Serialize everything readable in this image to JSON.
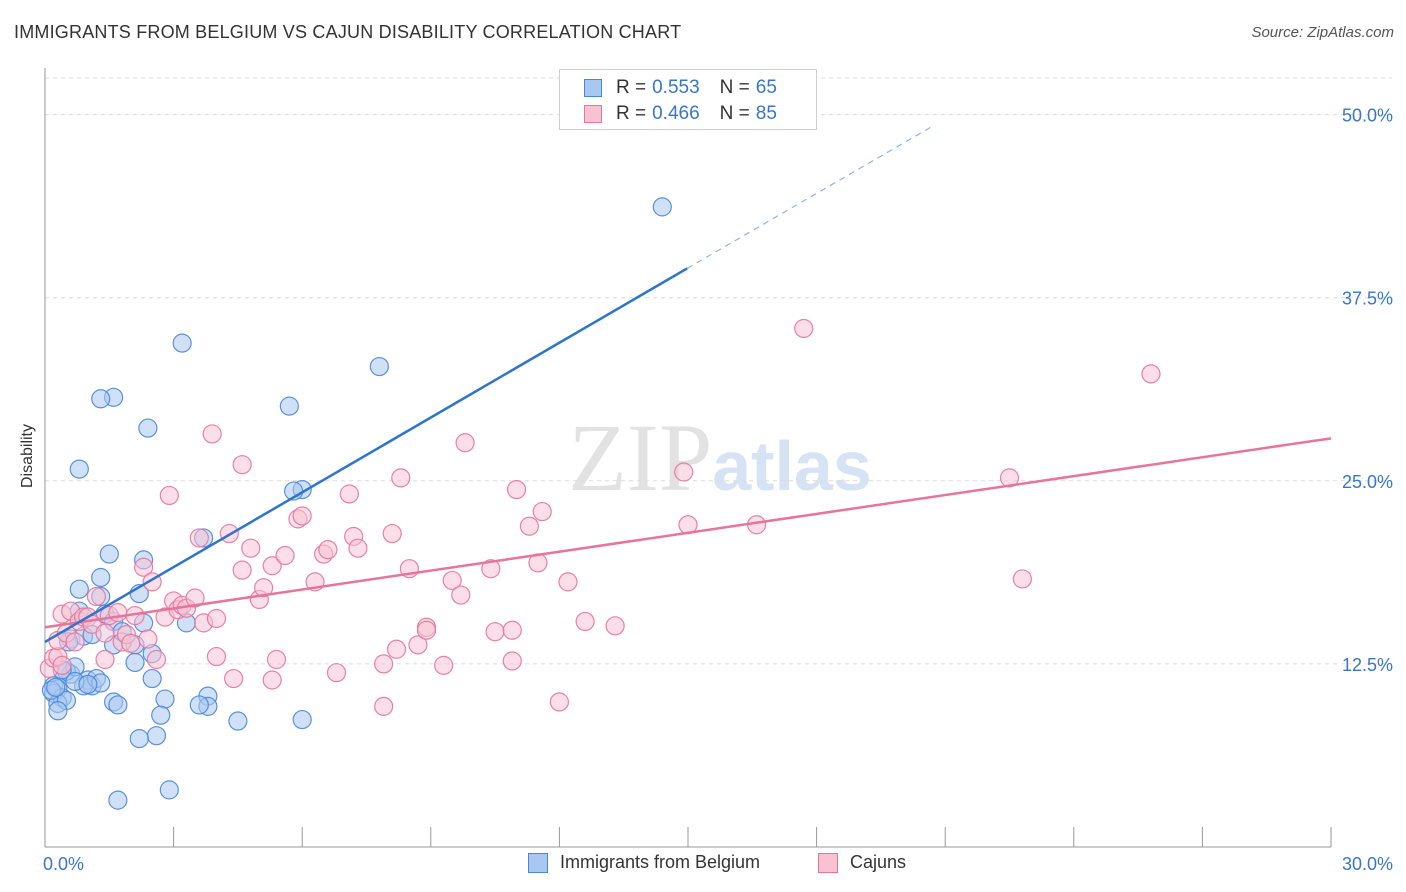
{
  "chart_data": {
    "type": "scatter",
    "title": "IMMIGRANTS FROM BELGIUM VS CAJUN DISABILITY CORRELATION CHART",
    "source": "Source: ZipAtlas.com",
    "xlabel": "",
    "ylabel": "Disability",
    "xlim": [
      0,
      30
    ],
    "ylim": [
      0,
      52.5
    ],
    "x_tick_labels": [
      "0.0%",
      "30.0%"
    ],
    "y_ticks": [
      12.5,
      25.0,
      37.5,
      50.0
    ],
    "y_tick_labels": [
      "12.5%",
      "25.0%",
      "37.5%",
      "50.0%"
    ],
    "watermark": "ZIPatlas",
    "legend_stats": [
      {
        "r_label": "R =",
        "r_value": "0.553",
        "n_label": "N =",
        "n_value": "65"
      },
      {
        "r_label": "R =",
        "r_value": "0.466",
        "n_label": "N =",
        "n_value": "85"
      }
    ],
    "series": [
      {
        "name": "Immigrants from Belgium",
        "color": "#4a86d8",
        "fill": "#a9c8f0",
        "trend": {
          "x0": 0.0,
          "y0": 14.0,
          "x1": 14.98,
          "y1": 39.5,
          "dash_to_x": 20.7,
          "dash_to_y": 49.2
        },
        "points": [
          [
            0.2,
            11.0
          ],
          [
            0.3,
            10.8
          ],
          [
            0.2,
            10.5
          ],
          [
            0.4,
            10.2
          ],
          [
            0.3,
            9.8
          ],
          [
            0.5,
            10.0
          ],
          [
            0.3,
            9.3
          ],
          [
            0.6,
            11.8
          ],
          [
            0.5,
            12.0
          ],
          [
            0.7,
            12.3
          ],
          [
            0.6,
            14.2
          ],
          [
            0.9,
            14.4
          ],
          [
            0.8,
            16.1
          ],
          [
            0.8,
            17.6
          ],
          [
            1.0,
            11.4
          ],
          [
            1.1,
            11.0
          ],
          [
            0.9,
            11.0
          ],
          [
            1.2,
            11.5
          ],
          [
            1.3,
            11.2
          ],
          [
            1.1,
            14.5
          ],
          [
            1.3,
            17.1
          ],
          [
            1.3,
            18.4
          ],
          [
            1.4,
            15.9
          ],
          [
            1.6,
            15.4
          ],
          [
            1.6,
            13.8
          ],
          [
            1.6,
            9.9
          ],
          [
            1.7,
            9.7
          ],
          [
            1.6,
            30.7
          ],
          [
            1.3,
            30.6
          ],
          [
            0.8,
            25.8
          ],
          [
            1.5,
            20.0
          ],
          [
            2.3,
            19.6
          ],
          [
            2.3,
            15.3
          ],
          [
            2.2,
            17.3
          ],
          [
            1.8,
            14.7
          ],
          [
            2.1,
            13.8
          ],
          [
            2.5,
            13.2
          ],
          [
            2.1,
            12.6
          ],
          [
            2.5,
            11.5
          ],
          [
            2.8,
            10.1
          ],
          [
            2.7,
            9.0
          ],
          [
            2.6,
            7.6
          ],
          [
            2.2,
            7.4
          ],
          [
            2.4,
            28.6
          ],
          [
            3.2,
            34.4
          ],
          [
            3.3,
            15.3
          ],
          [
            3.7,
            21.1
          ],
          [
            3.8,
            10.3
          ],
          [
            3.8,
            9.6
          ],
          [
            3.6,
            9.7
          ],
          [
            4.5,
            8.6
          ],
          [
            2.9,
            3.9
          ],
          [
            1.7,
            3.2
          ],
          [
            6.0,
            24.4
          ],
          [
            5.8,
            24.3
          ],
          [
            5.7,
            30.1
          ],
          [
            6.0,
            8.7
          ],
          [
            7.8,
            32.8
          ],
          [
            14.4,
            43.7
          ],
          [
            0.15,
            10.7
          ],
          [
            0.25,
            10.9
          ],
          [
            0.4,
            12.1
          ],
          [
            0.7,
            11.3
          ],
          [
            1.0,
            11.1
          ],
          [
            0.55,
            14.0
          ]
        ]
      },
      {
        "name": "Cajuns",
        "color": "#e8749c",
        "fill": "#f7c3d3",
        "trend": {
          "x0": 0.0,
          "y0": 15.0,
          "x1": 30.0,
          "y1": 27.9
        },
        "points": [
          [
            0.1,
            12.2
          ],
          [
            0.2,
            12.9
          ],
          [
            0.3,
            13.0
          ],
          [
            0.4,
            12.4
          ],
          [
            0.3,
            14.1
          ],
          [
            0.4,
            15.9
          ],
          [
            0.5,
            14.6
          ],
          [
            0.6,
            16.1
          ],
          [
            0.7,
            14.0
          ],
          [
            0.8,
            15.4
          ],
          [
            0.9,
            15.7
          ],
          [
            1.0,
            15.7
          ],
          [
            1.1,
            15.2
          ],
          [
            1.2,
            17.1
          ],
          [
            1.4,
            12.8
          ],
          [
            1.4,
            14.6
          ],
          [
            1.5,
            15.8
          ],
          [
            1.7,
            16.0
          ],
          [
            1.8,
            14.0
          ],
          [
            1.9,
            14.5
          ],
          [
            2.0,
            13.9
          ],
          [
            2.1,
            15.8
          ],
          [
            2.3,
            19.1
          ],
          [
            2.4,
            14.2
          ],
          [
            2.5,
            18.1
          ],
          [
            2.6,
            12.8
          ],
          [
            2.8,
            15.7
          ],
          [
            2.9,
            24.0
          ],
          [
            3.0,
            16.8
          ],
          [
            3.1,
            16.2
          ],
          [
            3.2,
            16.5
          ],
          [
            3.3,
            16.3
          ],
          [
            3.5,
            17.0
          ],
          [
            3.7,
            15.3
          ],
          [
            3.6,
            21.1
          ],
          [
            3.9,
            28.2
          ],
          [
            4.0,
            15.6
          ],
          [
            4.0,
            13.0
          ],
          [
            4.3,
            21.4
          ],
          [
            4.4,
            11.5
          ],
          [
            4.6,
            18.9
          ],
          [
            4.6,
            26.1
          ],
          [
            4.8,
            20.4
          ],
          [
            5.0,
            16.9
          ],
          [
            5.1,
            17.7
          ],
          [
            5.3,
            19.2
          ],
          [
            5.3,
            11.4
          ],
          [
            5.4,
            12.8
          ],
          [
            5.6,
            19.9
          ],
          [
            5.9,
            22.4
          ],
          [
            6.0,
            22.6
          ],
          [
            6.3,
            18.1
          ],
          [
            6.5,
            20.0
          ],
          [
            6.6,
            20.3
          ],
          [
            6.8,
            11.9
          ],
          [
            7.1,
            24.1
          ],
          [
            7.2,
            21.2
          ],
          [
            7.3,
            20.4
          ],
          [
            7.9,
            12.5
          ],
          [
            7.9,
            9.6
          ],
          [
            8.1,
            21.4
          ],
          [
            8.2,
            13.5
          ],
          [
            8.3,
            25.2
          ],
          [
            8.5,
            19.0
          ],
          [
            8.7,
            13.8
          ],
          [
            8.9,
            15.0
          ],
          [
            8.9,
            14.8
          ],
          [
            9.3,
            12.4
          ],
          [
            9.5,
            18.2
          ],
          [
            9.7,
            17.2
          ],
          [
            9.8,
            27.6
          ],
          [
            10.4,
            19.0
          ],
          [
            10.5,
            14.7
          ],
          [
            10.9,
            14.8
          ],
          [
            10.9,
            12.7
          ],
          [
            11.0,
            24.4
          ],
          [
            11.3,
            21.9
          ],
          [
            11.5,
            19.4
          ],
          [
            11.6,
            22.9
          ],
          [
            12.0,
            9.9
          ],
          [
            12.2,
            18.1
          ],
          [
            12.6,
            15.4
          ],
          [
            13.3,
            15.1
          ],
          [
            14.9,
            25.6
          ],
          [
            15.0,
            22.0
          ]
        ],
        "extra_points": [
          [
            16.6,
            22.0
          ],
          [
            17.7,
            35.4
          ],
          [
            22.8,
            18.3
          ],
          [
            22.5,
            25.2
          ],
          [
            25.8,
            32.3
          ]
        ]
      }
    ]
  }
}
